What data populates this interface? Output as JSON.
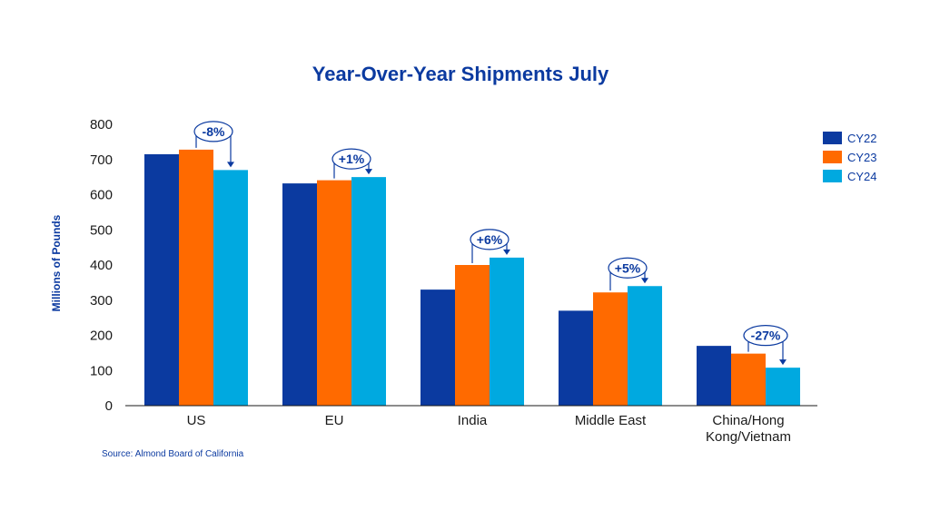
{
  "chart_data": {
    "type": "bar",
    "title": "Year-Over-Year Shipments July",
    "ylabel": "Millions of Pounds",
    "xlabel": "",
    "ylim": [
      0,
      800
    ],
    "yticks": [
      0,
      100,
      200,
      300,
      400,
      500,
      600,
      700,
      800
    ],
    "categories": [
      "US",
      "EU",
      "India",
      "Middle East",
      "China/Hong Kong/Vietnam"
    ],
    "category_lines": [
      [
        "US"
      ],
      [
        "EU"
      ],
      [
        "India"
      ],
      [
        "Middle East"
      ],
      [
        "China/Hong",
        "Kong/Vietnam"
      ]
    ],
    "series": [
      {
        "name": "CY22",
        "color": "#0b3aa0",
        "values": [
          715,
          632,
          330,
          270,
          170
        ]
      },
      {
        "name": "CY23",
        "color": "#ff6a00",
        "values": [
          728,
          641,
          400,
          322,
          148
        ]
      },
      {
        "name": "CY24",
        "color": "#00a9e0",
        "values": [
          670,
          650,
          421,
          340,
          108
        ]
      }
    ],
    "annotations": [
      "-8%",
      "+1%",
      "+6%",
      "+5%",
      "-27%"
    ],
    "legend_position": "top-right",
    "grid": false,
    "source": "Source: Almond Board of California"
  }
}
